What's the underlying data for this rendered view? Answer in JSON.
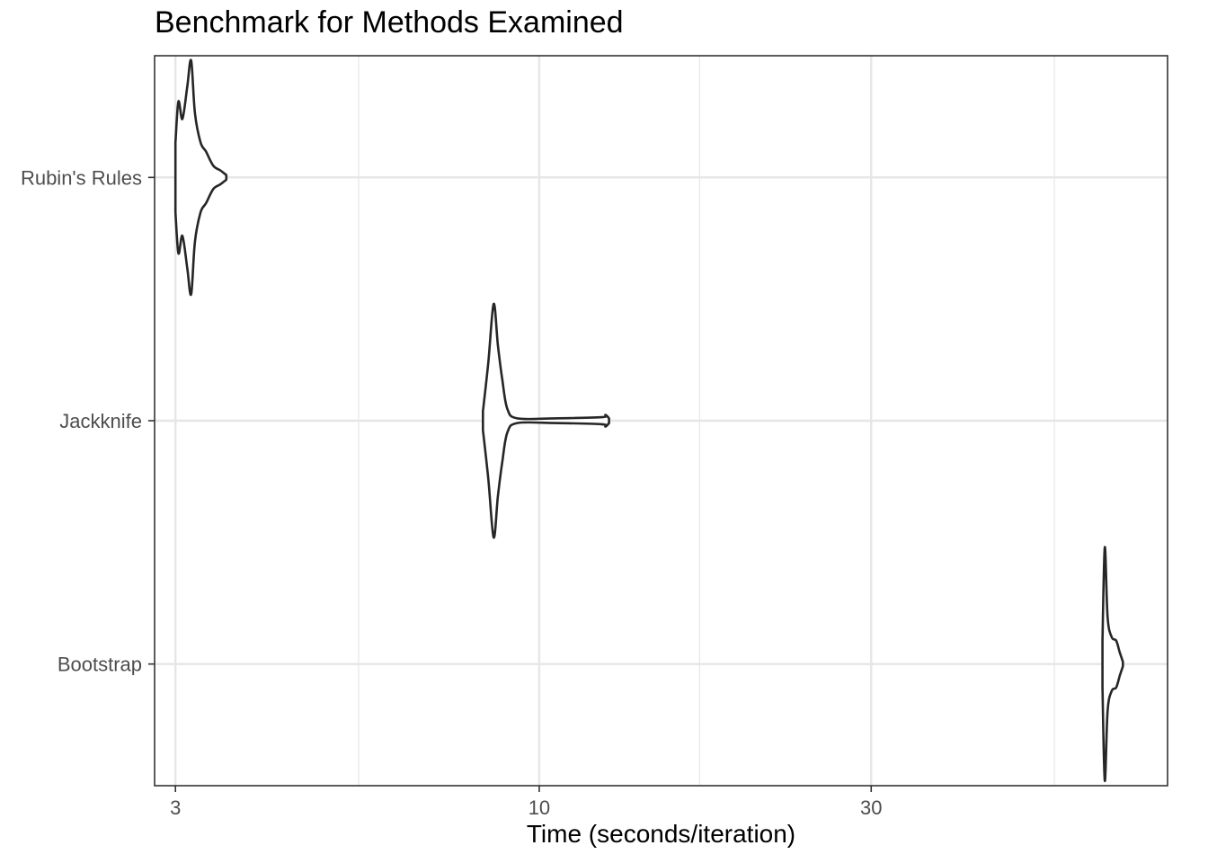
{
  "chart_data": {
    "type": "violin",
    "title": "Benchmark for Methods Examined",
    "xlabel": "Time (seconds/iteration)",
    "ylabel": "",
    "x_scale": "log10",
    "xlim": [
      2.8,
      80
    ],
    "x_ticks": [
      3,
      10,
      30
    ],
    "x_tick_labels": [
      "3",
      "10",
      "30"
    ],
    "x_minor_gridlines": [
      5.5,
      17,
      55
    ],
    "categories": [
      "Rubin's Rules",
      "Jackknife",
      "Bootstrap"
    ],
    "grid": true,
    "legend": "none",
    "colors": {
      "outline": "#262626",
      "grid": "#e6e6e6",
      "panel_border": "#333333",
      "tick_text": "#4d4d4d"
    },
    "series": [
      {
        "category": "Rubin's Rules",
        "min": 3.0,
        "max": 3.55,
        "profile": [
          [
            3.0,
            0.3
          ],
          [
            3.03,
            0.65
          ],
          [
            3.07,
            0.5
          ],
          [
            3.12,
            0.78
          ],
          [
            3.16,
            1.0
          ],
          [
            3.2,
            0.55
          ],
          [
            3.26,
            0.3
          ],
          [
            3.32,
            0.22
          ],
          [
            3.4,
            0.1
          ],
          [
            3.48,
            0.06
          ],
          [
            3.55,
            0.02
          ]
        ]
      },
      {
        "category": "Jackknife",
        "min": 8.3,
        "max": 12.6,
        "profile": [
          [
            8.3,
            0.08
          ],
          [
            8.45,
            0.5
          ],
          [
            8.6,
            1.0
          ],
          [
            8.72,
            0.65
          ],
          [
            8.85,
            0.35
          ],
          [
            9.0,
            0.1
          ],
          [
            9.3,
            0.02
          ],
          [
            10.5,
            0.02
          ],
          [
            12.3,
            0.03
          ],
          [
            12.45,
            0.05
          ],
          [
            12.6,
            0.02
          ]
        ]
      },
      {
        "category": "Bootstrap",
        "min": 64.5,
        "max": 69.0,
        "profile": [
          [
            64.5,
            0.2
          ],
          [
            65.0,
            1.0
          ],
          [
            65.6,
            0.4
          ],
          [
            66.5,
            0.23
          ],
          [
            67.5,
            0.2
          ],
          [
            68.3,
            0.1
          ],
          [
            69.0,
            0.02
          ]
        ]
      }
    ]
  }
}
